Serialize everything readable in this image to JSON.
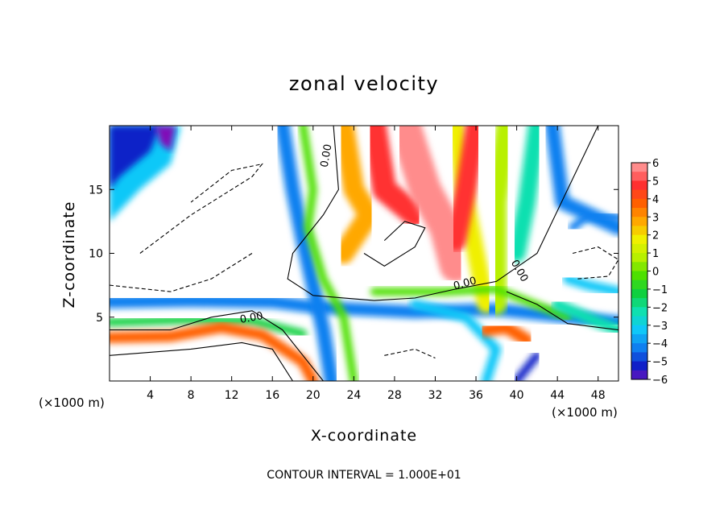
{
  "chart_data": {
    "type": "heatmap",
    "title": "zonal velocity",
    "xlabel": "X-coordinate",
    "ylabel": "Z-coordinate",
    "x_unit_left": "(×1000 m)",
    "x_unit_right": "(×1000 m)",
    "footer": "CONTOUR INTERVAL = 1.000E+01",
    "xlim": [
      0,
      50
    ],
    "ylim": [
      0,
      20
    ],
    "x_ticks": [
      4,
      8,
      12,
      16,
      20,
      24,
      28,
      32,
      36,
      40,
      44,
      48
    ],
    "y_ticks": [
      5,
      10,
      15
    ],
    "colorbar": {
      "ticks": [
        6,
        5,
        4,
        3,
        2,
        1,
        0,
        -1,
        -2,
        -3,
        -4,
        -5,
        -6
      ],
      "colors": [
        "#ff8c8c",
        "#ff3030",
        "#ff6000",
        "#ffa800",
        "#f0f000",
        "#b8f000",
        "#4ee000",
        "#10d040",
        "#10e0b0",
        "#10c8f8",
        "#1080f0",
        "#1020c8",
        "#8010b8"
      ]
    },
    "contour_labels": [
      "0.00",
      "0.00",
      "0.00",
      "0.00"
    ]
  }
}
